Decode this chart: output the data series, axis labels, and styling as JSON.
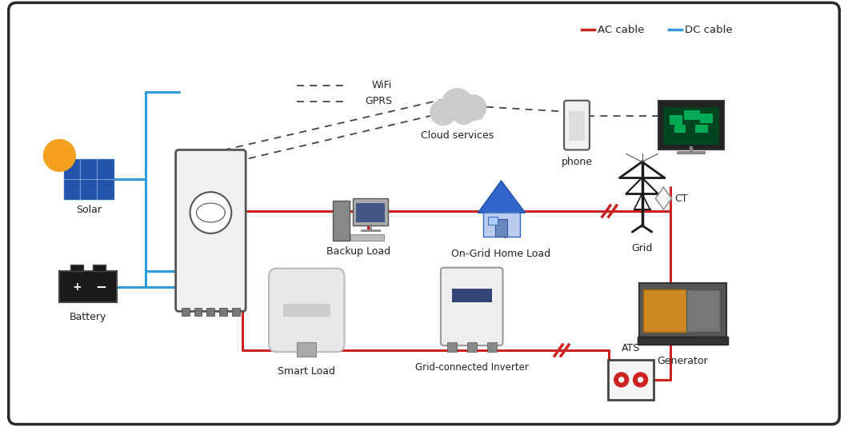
{
  "bg_color": "#ffffff",
  "border_color": "#2a2a2a",
  "ac_color": "#cc2222",
  "dc_color": "#3399dd",
  "dash_color": "#444444",
  "text_color": "#222222",
  "legend": {
    "ac_label": "AC cable",
    "dc_label": "DC cable",
    "ac_color": "#cc2222",
    "dc_color": "#3399dd"
  },
  "labels": {
    "solar": "Solar",
    "battery": "Battery",
    "backup_load": "Backup Load",
    "home_load": "On-Grid Home Load",
    "grid": "Grid",
    "cloud": "Cloud services",
    "phone": "phone",
    "smart_load": "Smart Load",
    "inverter": "Grid-connected Inverter",
    "generator": "Generator",
    "ats": "ATS",
    "ct": "CT",
    "wifi": "WiFi",
    "gprs": "GPRS"
  }
}
